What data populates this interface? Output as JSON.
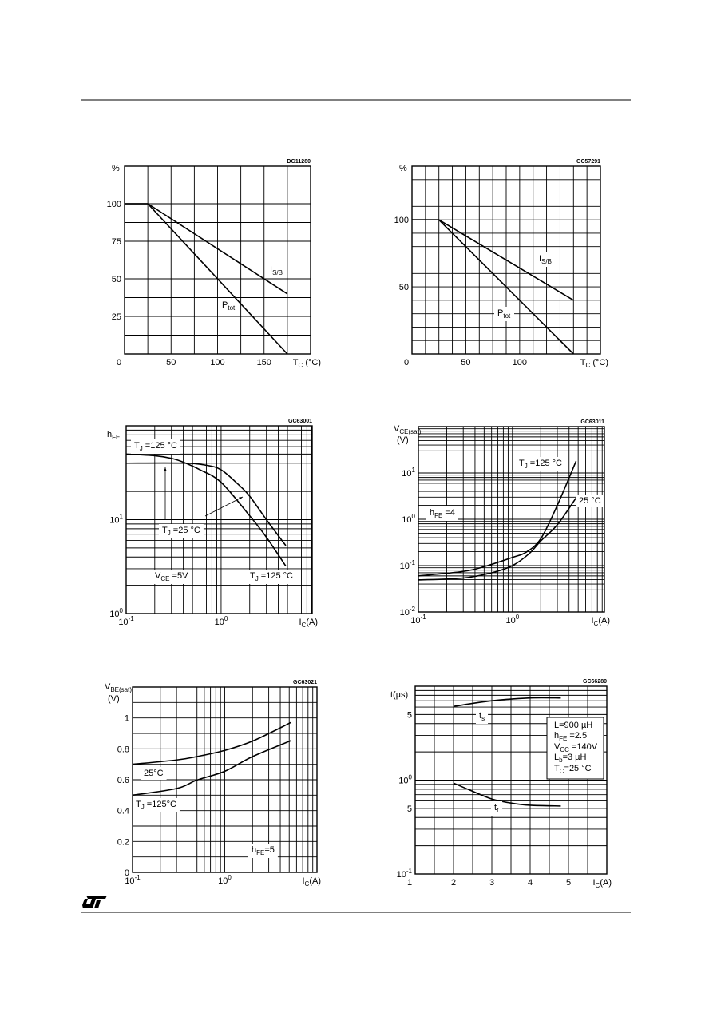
{
  "page": {
    "logo": "ST",
    "colors": {
      "ink": "#000000",
      "paper": "#ffffff"
    }
  },
  "chart_data": [
    {
      "type": "line",
      "code": "DG11280",
      "xscale": "linear",
      "yscale": "linear",
      "xlim": [
        0,
        200
      ],
      "ylim": [
        0,
        125
      ],
      "x_grid_step": 25,
      "y_grid_step": 12.5,
      "grid": true,
      "ylabel": [
        [
          {
            "t": "%"
          }
        ]
      ],
      "xlabel": [
        {
          "t": "T"
        },
        {
          "sub": "C"
        },
        {
          "t": " (°C)"
        }
      ],
      "x_ticks": [
        {
          "value": 0,
          "label": [
            {
              "t": "0"
            }
          ]
        },
        {
          "value": 50,
          "label": [
            {
              "t": "50"
            }
          ]
        },
        {
          "value": 100,
          "label": [
            {
              "t": "100"
            }
          ]
        },
        {
          "value": 150,
          "label": [
            {
              "t": "150"
            }
          ]
        }
      ],
      "y_ticks": [
        {
          "value": 25,
          "label": [
            {
              "t": "25"
            }
          ]
        },
        {
          "value": 50,
          "label": [
            {
              "t": "50"
            }
          ]
        },
        {
          "value": 75,
          "label": [
            {
              "t": "75"
            }
          ]
        },
        {
          "value": 100,
          "label": [
            {
              "t": "100"
            }
          ]
        }
      ],
      "series": [
        {
          "name": [
            {
              "t": "I"
            },
            {
              "sub": "S/B"
            }
          ],
          "points": [
            [
              0,
              100
            ],
            [
              25,
              100
            ],
            [
              175,
              40
            ]
          ]
        },
        {
          "name": [
            {
              "t": "P"
            },
            {
              "sub": "tot"
            }
          ],
          "points": [
            [
              0,
              100
            ],
            [
              25,
              100
            ],
            [
              175,
              0
            ]
          ]
        }
      ],
      "annotations": []
    },
    {
      "type": "line",
      "code": "GC57291",
      "xscale": "linear",
      "yscale": "linear",
      "xlim": [
        0,
        175
      ],
      "ylim": [
        0,
        140
      ],
      "x_grid_step": 12.5,
      "y_grid_step": 10,
      "grid": true,
      "ylabel": [
        [
          {
            "t": "%"
          }
        ]
      ],
      "xlabel": [
        {
          "t": "T"
        },
        {
          "sub": "C"
        },
        {
          "t": " (°C)"
        }
      ],
      "x_ticks": [
        {
          "value": 0,
          "label": [
            {
              "t": "0"
            }
          ]
        },
        {
          "value": 50,
          "label": [
            {
              "t": "50"
            }
          ]
        },
        {
          "value": 100,
          "label": [
            {
              "t": "100"
            }
          ]
        }
      ],
      "y_ticks": [
        {
          "value": 50,
          "label": [
            {
              "t": "50"
            }
          ]
        },
        {
          "value": 100,
          "label": [
            {
              "t": "100"
            }
          ]
        }
      ],
      "series": [
        {
          "name": [
            {
              "t": "I"
            },
            {
              "sub": "S/B"
            }
          ],
          "points": [
            [
              0,
              100
            ],
            [
              25,
              100
            ],
            [
              150,
              40
            ]
          ]
        },
        {
          "name": [
            {
              "t": "P"
            },
            {
              "sub": "tot"
            }
          ],
          "points": [
            [
              0,
              100
            ],
            [
              25,
              100
            ],
            [
              150,
              0
            ]
          ]
        }
      ],
      "annotations": []
    },
    {
      "type": "line",
      "code": "GC63001",
      "xscale": "log",
      "yscale": "log",
      "xlim": [
        0.1,
        9.1
      ],
      "ylim": [
        1,
        100
      ],
      "grid": true,
      "ylabel": [
        [
          {
            "t": "h"
          },
          {
            "sub": "FE"
          }
        ]
      ],
      "xlabel": [
        {
          "t": "I"
        },
        {
          "sub": "C"
        },
        {
          "t": "(A)"
        }
      ],
      "x_ticks": [
        {
          "value": 0.1,
          "label": [
            {
              "t": "10"
            },
            {
              "sup": "-1"
            }
          ]
        },
        {
          "value": 1,
          "label": [
            {
              "t": "10"
            },
            {
              "sup": "0"
            }
          ]
        }
      ],
      "y_ticks": [
        {
          "value": 1,
          "label": [
            {
              "t": "10"
            },
            {
              "sup": "0"
            }
          ]
        },
        {
          "value": 10,
          "label": [
            {
              "t": "10"
            },
            {
              "sup": "1"
            }
          ]
        }
      ],
      "series": [
        {
          "name": [
            {
              "t": "T"
            },
            {
              "sub": "J"
            },
            {
              "t": " =125 °C"
            }
          ],
          "points": [
            [
              0.1,
              50
            ],
            [
              0.2,
              48
            ],
            [
              0.3,
              45
            ],
            [
              0.4,
              41
            ],
            [
              0.6,
              34
            ],
            [
              1,
              25
            ],
            [
              2,
              11
            ],
            [
              3,
              6.5
            ],
            [
              4.8,
              3.2
            ]
          ]
        },
        {
          "name": [
            {
              "t": "T"
            },
            {
              "sub": "J"
            },
            {
              "t": " =25 °C"
            }
          ],
          "points": [
            [
              0.1,
              40
            ],
            [
              0.4,
              40
            ],
            [
              0.7,
              38
            ],
            [
              1,
              34
            ],
            [
              1.5,
              24
            ],
            [
              2,
              17.8
            ],
            [
              3,
              10
            ],
            [
              4.8,
              5.3
            ]
          ]
        }
      ],
      "annotations": [
        [
          {
            "t": "V"
          },
          {
            "sub": "CE"
          },
          {
            "t": " =5V"
          }
        ],
        [
          {
            "t": "T"
          },
          {
            "sub": "J"
          },
          {
            "t": " =125 °C"
          }
        ]
      ]
    },
    {
      "type": "line",
      "code": "GC63011",
      "xscale": "log",
      "yscale": "log",
      "xlim": [
        0.1,
        9.5
      ],
      "ylim": [
        0.01,
        100
      ],
      "grid": true,
      "ylabel": [
        [
          {
            "t": "V"
          },
          {
            "sub": "CE(sat)"
          }
        ],
        [
          {
            "t": "(V)"
          }
        ]
      ],
      "xlabel": [
        {
          "t": "I"
        },
        {
          "sub": "C"
        },
        {
          "t": "(A)"
        }
      ],
      "x_ticks": [
        {
          "value": 0.1,
          "label": [
            {
              "t": "10"
            },
            {
              "sup": "-1"
            }
          ]
        },
        {
          "value": 1,
          "label": [
            {
              "t": "10"
            },
            {
              "sup": "0"
            }
          ]
        }
      ],
      "y_ticks": [
        {
          "value": 0.01,
          "label": [
            {
              "t": "10"
            },
            {
              "sup": "-2"
            }
          ]
        },
        {
          "value": 0.1,
          "label": [
            {
              "t": "10"
            },
            {
              "sup": "-1"
            }
          ]
        },
        {
          "value": 1,
          "label": [
            {
              "t": "10"
            },
            {
              "sup": "0"
            }
          ]
        },
        {
          "value": 10,
          "label": [
            {
              "t": "10"
            },
            {
              "sup": "1"
            }
          ]
        }
      ],
      "series": [
        {
          "name": [
            {
              "t": "T"
            },
            {
              "sub": "J"
            },
            {
              "t": " =125 °C"
            }
          ],
          "points": [
            [
              0.1,
              0.06
            ],
            [
              0.3,
              0.075
            ],
            [
              0.5,
              0.095
            ],
            [
              1,
              0.15
            ],
            [
              1.4,
              0.195
            ],
            [
              2,
              0.38
            ],
            [
              3,
              2.0
            ],
            [
              4.75,
              18
            ]
          ]
        },
        {
          "name": [
            {
              "t": "25 °C"
            }
          ],
          "points": [
            [
              0.1,
              0.049
            ],
            [
              0.3,
              0.054
            ],
            [
              0.6,
              0.07
            ],
            [
              1,
              0.1
            ],
            [
              1.5,
              0.18
            ],
            [
              2,
              0.34
            ],
            [
              3,
              0.76
            ],
            [
              4.75,
              2.9
            ]
          ]
        }
      ],
      "annotations": [
        [
          {
            "t": "h"
          },
          {
            "sub": "FE"
          },
          {
            "t": " =4"
          }
        ]
      ]
    },
    {
      "type": "line",
      "code": "GC63021",
      "xscale": "log",
      "yscale": "linear",
      "xlim": [
        0.1,
        10
      ],
      "ylim": [
        0,
        1.2
      ],
      "y_grid_step": 0.1,
      "grid": true,
      "ylabel": [
        [
          {
            "t": "V"
          },
          {
            "sub": "BE(sat)"
          }
        ],
        [
          {
            "t": "(V)"
          }
        ]
      ],
      "xlabel": [
        {
          "t": "I"
        },
        {
          "sub": "C"
        },
        {
          "t": "(A)"
        }
      ],
      "x_ticks": [
        {
          "value": 0.1,
          "label": [
            {
              "t": "10"
            },
            {
              "sup": "-1"
            }
          ]
        },
        {
          "value": 1,
          "label": [
            {
              "t": "10"
            },
            {
              "sup": "0"
            }
          ]
        }
      ],
      "y_ticks": [
        {
          "value": 0,
          "label": [
            {
              "t": "0"
            }
          ]
        },
        {
          "value": 0.2,
          "label": [
            {
              "t": "0.2"
            }
          ]
        },
        {
          "value": 0.4,
          "label": [
            {
              "t": "0.4"
            }
          ]
        },
        {
          "value": 0.6,
          "label": [
            {
              "t": "0.6"
            }
          ]
        },
        {
          "value": 0.8,
          "label": [
            {
              "t": "0.8"
            }
          ]
        },
        {
          "value": 1,
          "label": [
            {
              "t": "1"
            }
          ]
        }
      ],
      "series": [
        {
          "name": [
            {
              "t": "25°C"
            }
          ],
          "points": [
            [
              0.1,
              0.7
            ],
            [
              0.3,
              0.728
            ],
            [
              0.5,
              0.75
            ],
            [
              1,
              0.79
            ],
            [
              2,
              0.85
            ],
            [
              5.2,
              0.97
            ]
          ]
        },
        {
          "name": [
            {
              "t": "T"
            },
            {
              "sub": "J"
            },
            {
              "t": " =125°C"
            }
          ],
          "points": [
            [
              0.1,
              0.5
            ],
            [
              0.3,
              0.543
            ],
            [
              0.5,
              0.598
            ],
            [
              1,
              0.655
            ],
            [
              2,
              0.75
            ],
            [
              5.2,
              0.853
            ]
          ]
        }
      ],
      "annotations": [
        [
          {
            "t": "h"
          },
          {
            "sub": "FE"
          },
          {
            "t": "=5"
          }
        ]
      ]
    },
    {
      "type": "line",
      "code": "GC66280",
      "xscale": "linear",
      "yscale": "log",
      "xlim": [
        1,
        6
      ],
      "ylim": [
        0.1,
        10
      ],
      "x_grid_step": 0.5,
      "grid": true,
      "ylabel": [
        [
          {
            "t": "t(µs)"
          }
        ]
      ],
      "xlabel": [
        {
          "t": "I"
        },
        {
          "sub": "C"
        },
        {
          "t": "(A)"
        }
      ],
      "x_ticks": [
        {
          "value": 1,
          "label": [
            {
              "t": "1"
            }
          ]
        },
        {
          "value": 2,
          "label": [
            {
              "t": "2"
            }
          ]
        },
        {
          "value": 3,
          "label": [
            {
              "t": "3"
            }
          ]
        },
        {
          "value": 4,
          "label": [
            {
              "t": "4"
            }
          ]
        },
        {
          "value": 5,
          "label": [
            {
              "t": "5"
            }
          ]
        }
      ],
      "y_ticks": [
        {
          "value": 0.1,
          "label": [
            {
              "t": "10"
            },
            {
              "sup": "-1"
            }
          ]
        },
        {
          "value": 0.5,
          "label": [
            {
              "t": "5"
            }
          ]
        },
        {
          "value": 1,
          "label": [
            {
              "t": "10"
            },
            {
              "sup": "0"
            }
          ]
        },
        {
          "value": 5,
          "label": [
            {
              "t": "5"
            }
          ]
        }
      ],
      "series": [
        {
          "name": [
            {
              "t": "t"
            },
            {
              "sub": "s"
            }
          ],
          "points": [
            [
              2,
              6.1
            ],
            [
              3,
              7.0
            ],
            [
              4,
              7.5
            ],
            [
              4.8,
              7.5
            ]
          ]
        },
        {
          "name": [
            {
              "t": "t"
            },
            {
              "sub": "f"
            }
          ],
          "points": [
            [
              2,
              0.93
            ],
            [
              2.5,
              0.76
            ],
            [
              3,
              0.63
            ],
            [
              3.5,
              0.57
            ],
            [
              4,
              0.54
            ],
            [
              4.8,
              0.53
            ]
          ]
        }
      ],
      "annotations": [
        [
          {
            "t": "L=900 µH"
          }
        ],
        [
          {
            "t": "h"
          },
          {
            "sub": "FE"
          },
          {
            "t": " =2.5"
          }
        ],
        [
          {
            "t": "V"
          },
          {
            "sub": "CC"
          },
          {
            "t": " =140V"
          }
        ],
        [
          {
            "t": "L"
          },
          {
            "sub": "b"
          },
          {
            "t": "=3 µH"
          }
        ],
        [
          {
            "t": "T"
          },
          {
            "sub": "C"
          },
          {
            "t": "=25 °C"
          }
        ]
      ]
    }
  ]
}
